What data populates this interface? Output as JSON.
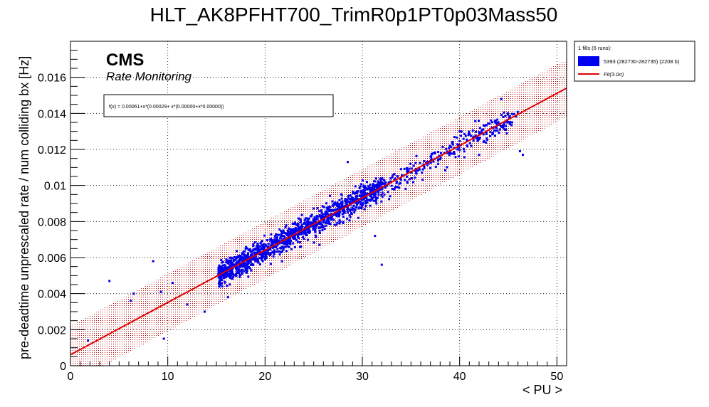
{
  "chart_data": {
    "type": "scatter",
    "title": "HLT_AK8PFHT700_TrimR0p1PT0p03Mass50",
    "xlabel": "< PU >",
    "ylabel": "pre-deadtime unprescaled rate / num colliding bx [Hz]",
    "xlim": [
      0,
      51
    ],
    "ylim": [
      0,
      0.018
    ],
    "x_ticks": [
      0,
      10,
      20,
      30,
      40,
      50
    ],
    "x_tick_labels": [
      "0",
      "10",
      "20",
      "30",
      "40",
      "50"
    ],
    "y_ticks": [
      0,
      0.002,
      0.004,
      0.006,
      0.008,
      0.01,
      0.012,
      0.014,
      0.016
    ],
    "y_tick_labels": [
      "0",
      "0.002",
      "0.004",
      "0.006",
      "0.008",
      "0.01",
      "0.012",
      "0.014",
      "0.016"
    ],
    "grid": true,
    "watermark": {
      "experiment": "CMS",
      "subtitle": "Rate Monitoring"
    },
    "fit": {
      "formula": "f(x) = 0.00061+x*(0.00029+ x*(0.00000+x*0.00000))",
      "p0": 0.00061,
      "p1": 0.00029,
      "band_halfwidth": 0.0016,
      "x_range": [
        0,
        51
      ],
      "color": "#e00000"
    },
    "legend": {
      "position": "outside-top-right",
      "header": "1 fills (6 runs):",
      "entries": [
        {
          "label": "5393 (282730-282735) (2208 b)",
          "kind": "box",
          "color": "#0000ee"
        },
        {
          "label": "Fit(3.0σ)",
          "kind": "line",
          "color": "#e00000"
        }
      ]
    },
    "series": [
      {
        "name": "5393 (282730-282735) (2208 b)",
        "color": "#0000ee",
        "bulk": {
          "x_range": [
            15.2,
            46
          ],
          "noise_sd": 0.00033,
          "points": 1500
        },
        "x": [
          1.8,
          4,
          6.2,
          6.5,
          8.5,
          9.3,
          9.6,
          10.5,
          12,
          13.8,
          15.6,
          16.2,
          28.5,
          29.6,
          31.3,
          32,
          42,
          44.3,
          45.4,
          46.2,
          46.5
        ],
        "y": [
          0.0014,
          0.0047,
          0.0036,
          0.004,
          0.0058,
          0.0041,
          0.0015,
          0.0046,
          0.0034,
          0.003,
          0.0044,
          0.0038,
          0.0113,
          0.0082,
          0.0072,
          0.0056,
          0.0117,
          0.0148,
          0.0135,
          0.0119,
          0.0117
        ]
      }
    ]
  }
}
